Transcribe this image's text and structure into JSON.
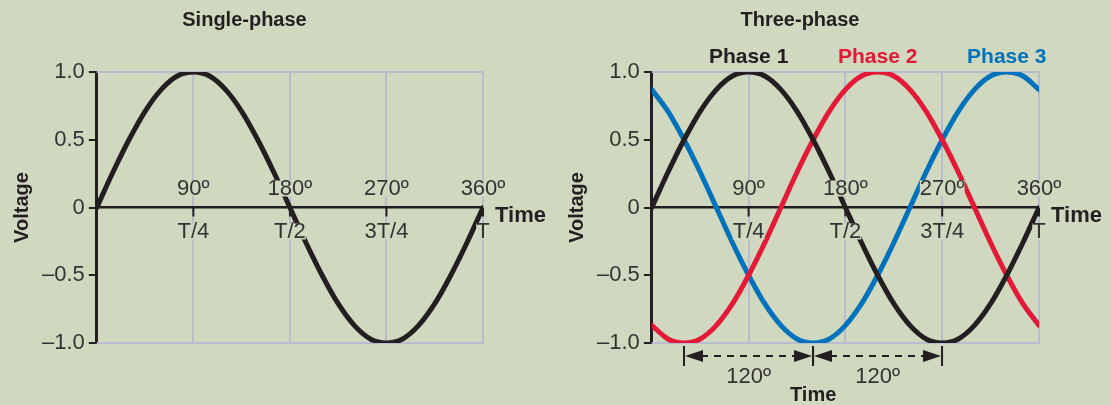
{
  "chart_data": [
    {
      "type": "line",
      "title": "Single-phase",
      "xlabel": "Time",
      "ylabel": "Voltage",
      "x": [
        0,
        15,
        30,
        45,
        60,
        75,
        90,
        105,
        120,
        135,
        150,
        165,
        180,
        195,
        210,
        225,
        240,
        255,
        270,
        285,
        300,
        315,
        330,
        345,
        360
      ],
      "series": [
        {
          "color": "#231f20",
          "values": [
            0,
            0.26,
            0.5,
            0.71,
            0.87,
            0.97,
            1,
            0.97,
            0.87,
            0.71,
            0.5,
            0.26,
            0,
            -0.26,
            -0.5,
            -0.71,
            -0.87,
            -0.97,
            -1,
            -0.97,
            -0.87,
            -0.71,
            -0.5,
            -0.26,
            0
          ]
        }
      ],
      "xlim": [
        0,
        360
      ],
      "xticks": [
        {
          "value": 90,
          "label": "90º"
        },
        {
          "value": 180,
          "label": "180º"
        },
        {
          "value": 270,
          "label": "270º"
        },
        {
          "value": 360,
          "label": "360º"
        }
      ],
      "ylim": [
        -1,
        1
      ],
      "yticks": [
        {
          "value": -1,
          "label": "–1.0"
        },
        {
          "value": -0.5,
          "label": "–0.5"
        },
        0,
        {
          "value": 0.5,
          "label": "0.5"
        },
        {
          "value": 1,
          "label": "1.0"
        }
      ],
      "grid": "x",
      "marker": "none",
      "line_style": "solid",
      "annotations": [
        "T/4",
        "T/2",
        "3T/4",
        "T"
      ]
    },
    {
      "type": "line",
      "title": "Three-phase",
      "xlabel": "Time",
      "ylabel": "Voltage",
      "x": [
        0,
        15,
        30,
        45,
        60,
        75,
        90,
        105,
        120,
        135,
        150,
        165,
        180,
        195,
        210,
        225,
        240,
        255,
        270,
        285,
        300,
        315,
        330,
        345,
        360
      ],
      "series": [
        {
          "name": "Phase 1",
          "color": "#231f20",
          "values": [
            0,
            0.26,
            0.5,
            0.71,
            0.87,
            0.97,
            1,
            0.97,
            0.87,
            0.71,
            0.5,
            0.26,
            0,
            -0.26,
            -0.5,
            -0.71,
            -0.87,
            -0.97,
            -1,
            -0.97,
            -0.87,
            -0.71,
            -0.5,
            -0.26,
            0
          ]
        },
        {
          "name": "Phase 2",
          "color": "#e31937",
          "values": [
            -0.87,
            -0.97,
            -1,
            -0.97,
            -0.87,
            -0.71,
            -0.5,
            -0.26,
            0,
            0.26,
            0.5,
            0.71,
            0.87,
            0.97,
            1,
            0.97,
            0.87,
            0.71,
            0.5,
            0.26,
            0,
            -0.26,
            -0.5,
            -0.71,
            -0.87
          ]
        },
        {
          "name": "Phase 3",
          "color": "#0072bc",
          "values": [
            0.87,
            0.71,
            0.5,
            0.26,
            0,
            -0.26,
            -0.5,
            -0.71,
            -0.87,
            -0.97,
            -1,
            -0.97,
            -0.87,
            -0.71,
            -0.5,
            -0.26,
            0,
            0.26,
            0.5,
            0.71,
            0.87,
            0.97,
            1,
            0.97,
            0.87
          ]
        }
      ],
      "xlim": [
        0,
        360
      ],
      "xticks": [
        {
          "value": 90,
          "label": "90º"
        },
        {
          "value": 180,
          "label": "180º"
        },
        {
          "value": 270,
          "label": "270º"
        },
        {
          "value": 360,
          "label": "360º"
        }
      ],
      "ylim": [
        -1,
        1
      ],
      "yticks": [
        {
          "value": -1,
          "label": "–1.0"
        },
        {
          "value": -0.5,
          "label": "–0.5"
        },
        0,
        {
          "value": 0.5,
          "label": "0.5"
        },
        {
          "value": 1,
          "label": "1.0"
        }
      ],
      "grid": "x",
      "legend": "top",
      "marker": "none",
      "line_style": "solid",
      "annotations": [
        "T/4",
        "T/2",
        "3T/4",
        "T",
        "120º",
        "120º",
        "Time"
      ]
    }
  ]
}
